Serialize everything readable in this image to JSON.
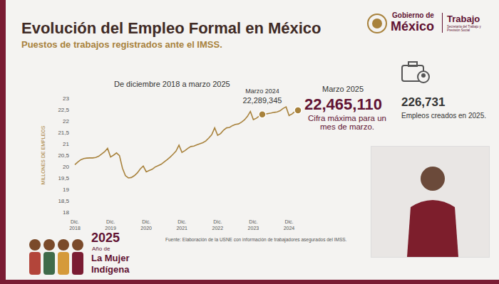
{
  "chart_data": {
    "type": "line",
    "title": "Evolución del Empleo Formal en México",
    "subtitle": "Puestos de trabajos registrados ante el IMSS.",
    "period": "De diciembre 2018 a marzo 2025",
    "y_label": "MILLONES DE EMPLEOS",
    "categories": [
      "Dic. 2018",
      null,
      null,
      null,
      null,
      null,
      null,
      null,
      null,
      null,
      null,
      null,
      "Dic. 2019",
      null,
      null,
      null,
      null,
      null,
      null,
      null,
      null,
      null,
      null,
      null,
      "Dic. 2020",
      null,
      null,
      null,
      null,
      null,
      null,
      null,
      null,
      null,
      null,
      null,
      "Dic. 2021",
      null,
      null,
      null,
      null,
      null,
      null,
      null,
      null,
      null,
      null,
      null,
      "Dic. 2022",
      null,
      null,
      null,
      null,
      null,
      null,
      null,
      null,
      null,
      null,
      null,
      "Dic. 2023",
      null,
      null,
      null,
      null,
      null,
      null,
      null,
      null,
      null,
      null,
      null,
      "Dic. 2024",
      null,
      null,
      null
    ],
    "values": [
      20.08,
      20.2,
      20.3,
      20.35,
      20.37,
      20.38,
      20.38,
      20.4,
      20.45,
      20.55,
      20.65,
      20.8,
      20.42,
      20.5,
      20.6,
      20.48,
      19.93,
      19.6,
      19.5,
      19.52,
      19.6,
      19.72,
      19.9,
      20.02,
      19.77,
      19.83,
      19.88,
      19.98,
      20.04,
      20.1,
      20.2,
      20.3,
      20.41,
      20.54,
      20.68,
      20.94,
      20.62,
      20.7,
      20.8,
      20.88,
      20.9,
      20.95,
      21.0,
      21.05,
      21.12,
      21.25,
      21.4,
      21.7,
      21.37,
      21.45,
      21.6,
      21.7,
      21.72,
      21.8,
      21.85,
      21.87,
      21.95,
      22.05,
      22.2,
      22.42,
      22.06,
      22.12,
      22.22,
      22.289345,
      22.3,
      22.33,
      22.35,
      22.38,
      22.4,
      22.45,
      22.55,
      22.62,
      22.24,
      22.31,
      22.42,
      22.46511
    ],
    "color": "#a8823c",
    "ylim": [
      18,
      23
    ],
    "yticks": [
      18,
      {
        "value": 18.5,
        "label": "18,5"
      },
      19,
      {
        "value": 19.5,
        "label": "19,5"
      },
      20,
      {
        "value": 20.5,
        "label": "20,5"
      },
      21,
      {
        "value": 21.5,
        "label": "21,5"
      },
      22,
      {
        "value": 22.5,
        "label": "22,5"
      },
      23
    ],
    "grid": false,
    "highlight": {
      "x_index": 63,
      "label": "Marzo 2024",
      "value_label": "22,289,345"
    },
    "callout": {
      "x_index": 75,
      "label": "Marzo 2025",
      "value_label": "22,465,110",
      "note": "Cifra máxima para un mes de marzo."
    },
    "kpi": {
      "value_label": "226,731",
      "label": "Empleos creados en 2025."
    },
    "source": "Fuente: Elaboración de la USNE con información de trabajadores asegurados del IMSS.",
    "logo": {
      "line1": "Gobierno de",
      "line2": "México",
      "area": "Trabajo",
      "area_sub": "Secretaría del Trabajo y Previsión Social"
    },
    "badge": [
      "2025",
      "Año de",
      "La Mujer",
      "Indígena"
    ]
  }
}
